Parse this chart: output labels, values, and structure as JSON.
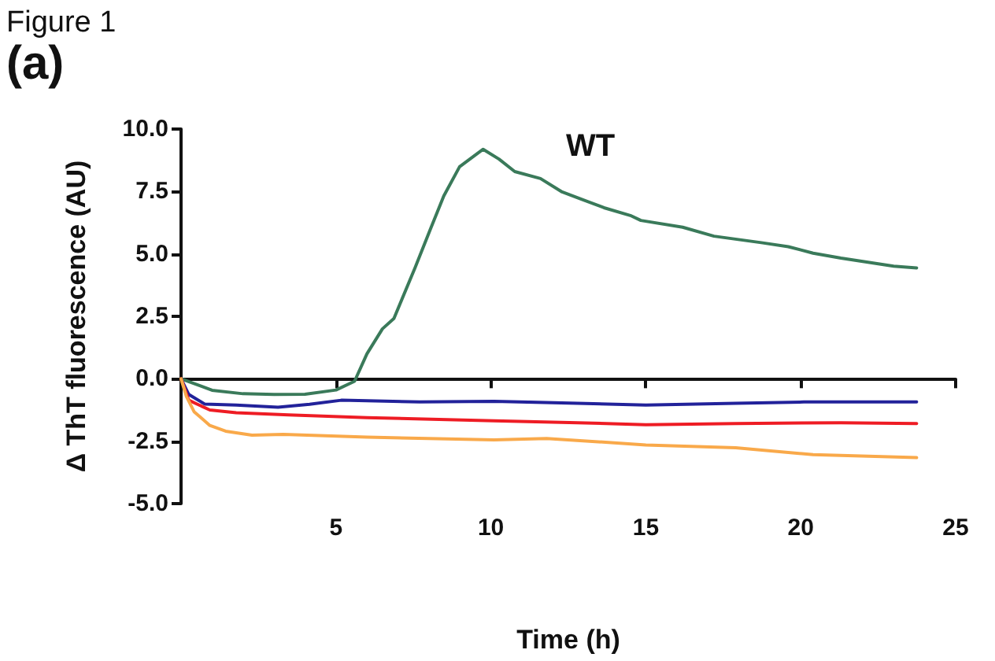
{
  "chart_data": {
    "type": "line",
    "title": "WT",
    "xlabel": "Time (h)",
    "ylabel": "Δ ThT fluorescence (AU)",
    "annotations": [
      "Figure 1",
      "(a)"
    ],
    "xlim": [
      0,
      25
    ],
    "xticks": [
      {
        "value": 0,
        "label": null
      },
      5,
      10,
      15,
      20,
      25
    ],
    "ylim": [
      -5,
      10
    ],
    "yticks": [
      {
        "value": -5,
        "label": "-5.0"
      },
      {
        "value": -2.5,
        "label": "-2.5"
      },
      {
        "value": 0,
        "label": "0.0"
      },
      {
        "value": 2.5,
        "label": "2.5"
      },
      {
        "value": 5,
        "label": "5.0"
      },
      {
        "value": 7.5,
        "label": "7.5"
      },
      {
        "value": 10,
        "label": "10.0"
      }
    ],
    "series": [
      {
        "color": "#3a7a5a",
        "x": [
          0,
          1,
          2,
          3,
          4,
          5,
          5.6,
          6,
          6.5,
          6.87,
          7.55,
          8.05,
          8.48,
          8.99,
          9.75,
          10.26,
          10.77,
          11.6,
          12.3,
          13.65,
          14.5,
          14.84,
          16.19,
          17.2,
          18.73,
          19.6,
          20.4,
          21.3,
          23.0,
          23.74
        ],
        "values": [
          0,
          -0.46,
          -0.6,
          -0.63,
          -0.62,
          -0.45,
          -0.1,
          1.0,
          2.0,
          2.41,
          4.44,
          6.0,
          7.32,
          8.49,
          9.19,
          8.8,
          8.3,
          8.02,
          7.48,
          6.85,
          6.54,
          6.34,
          6.07,
          5.71,
          5.45,
          5.29,
          5.03,
          4.83,
          4.51,
          4.44
        ]
      },
      {
        "color": "#22229a",
        "x": [
          0,
          0.25,
          0.76,
          1.78,
          3.13,
          4.15,
          5.17,
          7.7,
          10.1,
          12.8,
          15.0,
          17.9,
          20.1,
          21.3,
          23.74
        ],
        "values": [
          0,
          -0.63,
          -1.01,
          -1.05,
          -1.14,
          -1.02,
          -0.86,
          -0.93,
          -0.9,
          -0.98,
          -1.05,
          -0.98,
          -0.93,
          -0.93,
          -0.93
        ]
      },
      {
        "color": "#ee1c24",
        "x": [
          0,
          0.25,
          0.93,
          1.78,
          3.47,
          6.0,
          10.1,
          12.8,
          15.0,
          17.9,
          21.3,
          23.74
        ],
        "values": [
          0,
          -0.86,
          -1.25,
          -1.36,
          -1.45,
          -1.56,
          -1.68,
          -1.76,
          -1.84,
          -1.79,
          -1.76,
          -1.79
        ]
      },
      {
        "color": "#f9a94a",
        "x": [
          0,
          0.17,
          0.42,
          0.93,
          1.44,
          2.29,
          3.3,
          6.0,
          10.1,
          11.8,
          15.0,
          17.9,
          20.4,
          23.74
        ],
        "values": [
          0,
          -0.7,
          -1.32,
          -1.87,
          -2.1,
          -2.26,
          -2.23,
          -2.34,
          -2.45,
          -2.39,
          -2.65,
          -2.76,
          -3.04,
          -3.16
        ]
      }
    ]
  }
}
